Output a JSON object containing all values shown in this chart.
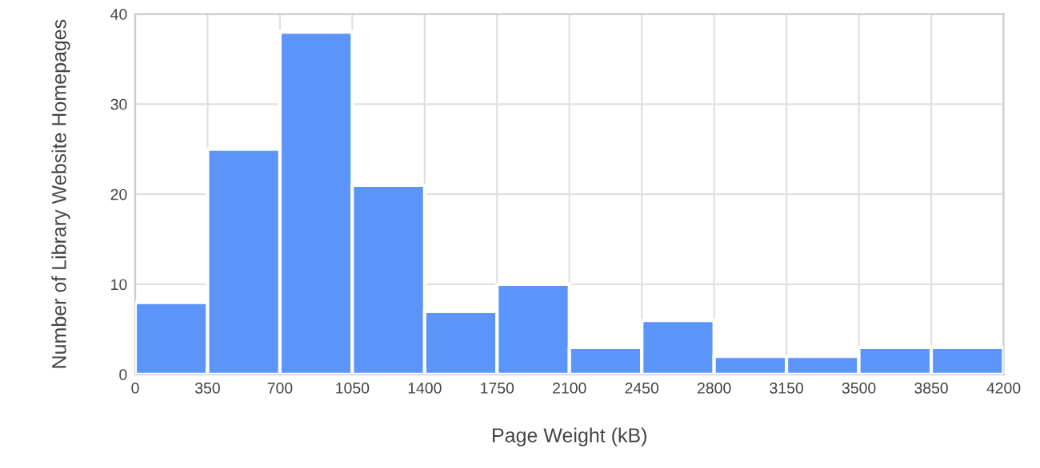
{
  "chart_data": {
    "type": "histogram",
    "xlabel": "Page Weight (kB)",
    "ylabel": "Number of Library Website Homepages",
    "bins": [
      0,
      350,
      700,
      1050,
      1400,
      1750,
      2100,
      2450,
      2800,
      3150,
      3500,
      3850,
      4200
    ],
    "values": [
      8,
      25,
      38,
      21,
      7,
      10,
      3,
      6,
      2,
      2,
      3,
      3
    ],
    "color": "#5b95f9",
    "xlim": [
      0,
      4200
    ],
    "xticks": [
      0,
      350,
      700,
      1050,
      1400,
      1750,
      2100,
      2450,
      2800,
      3150,
      3500,
      3850,
      4200
    ],
    "ylim": [
      0,
      40
    ],
    "yticks": [
      0,
      10,
      20,
      30,
      40
    ],
    "grid": true
  }
}
